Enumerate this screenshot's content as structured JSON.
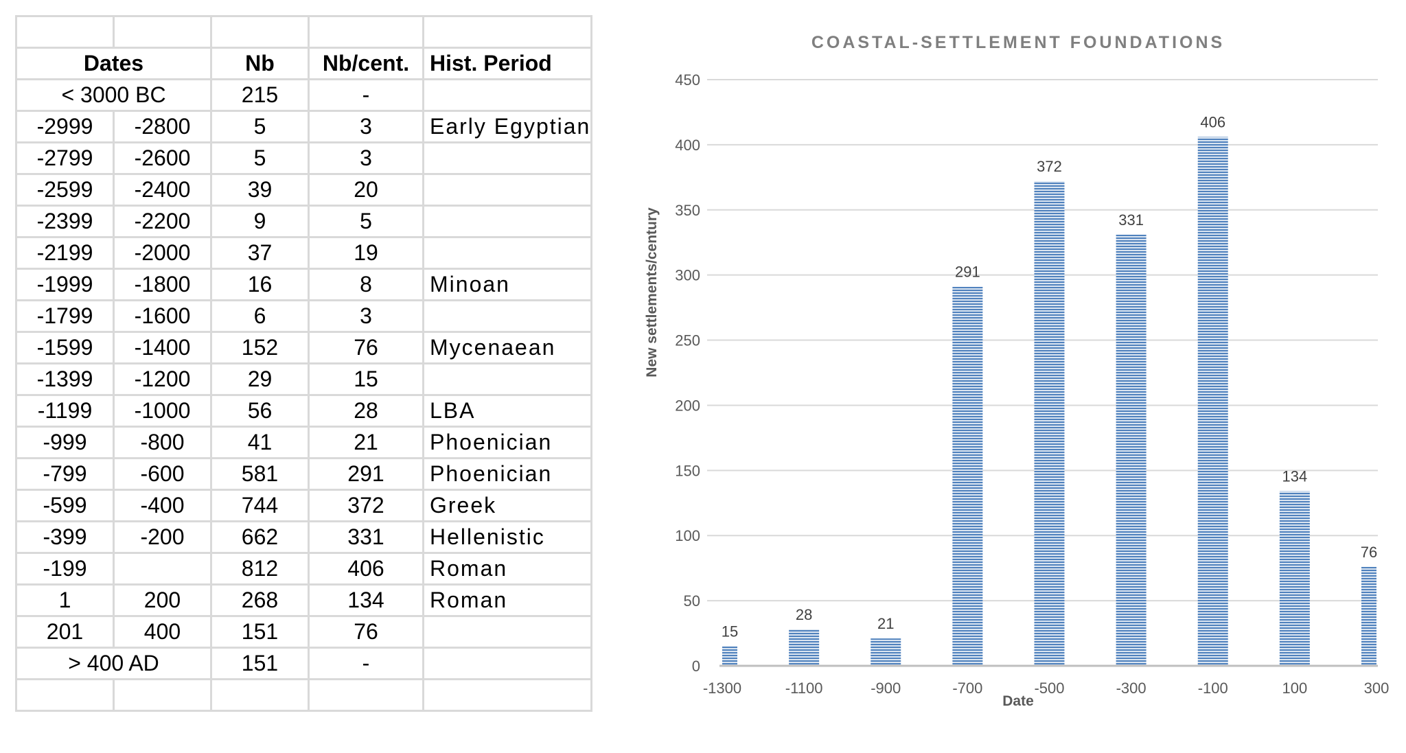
{
  "table": {
    "header": [
      "Dates",
      "Nb",
      "Nb/cent.",
      "Hist. Period"
    ],
    "rows": [
      {
        "start": "< 3000 BC",
        "end": "",
        "merged": true,
        "nb": "215",
        "nb_cent": "-",
        "period": ""
      },
      {
        "start": "-2999",
        "end": "-2800",
        "nb": "5",
        "nb_cent": "3",
        "period": "Early Egyptian"
      },
      {
        "start": "-2799",
        "end": "-2600",
        "nb": "5",
        "nb_cent": "3",
        "period": ""
      },
      {
        "start": "-2599",
        "end": "-2400",
        "nb": "39",
        "nb_cent": "20",
        "period": ""
      },
      {
        "start": "-2399",
        "end": "-2200",
        "nb": "9",
        "nb_cent": "5",
        "period": ""
      },
      {
        "start": "-2199",
        "end": "-2000",
        "nb": "37",
        "nb_cent": "19",
        "period": ""
      },
      {
        "start": "-1999",
        "end": "-1800",
        "nb": "16",
        "nb_cent": "8",
        "period": "Minoan"
      },
      {
        "start": "-1799",
        "end": "-1600",
        "nb": "6",
        "nb_cent": "3",
        "period": ""
      },
      {
        "start": "-1599",
        "end": "-1400",
        "nb": "152",
        "nb_cent": "76",
        "period": "Mycenaean"
      },
      {
        "start": "-1399",
        "end": "-1200",
        "nb": "29",
        "nb_cent": "15",
        "period": ""
      },
      {
        "start": "-1199",
        "end": "-1000",
        "nb": "56",
        "nb_cent": "28",
        "period": "LBA"
      },
      {
        "start": "-999",
        "end": "-800",
        "nb": "41",
        "nb_cent": "21",
        "period": "Phoenician"
      },
      {
        "start": "-799",
        "end": "-600",
        "nb": "581",
        "nb_cent": "291",
        "period": "Phoenician"
      },
      {
        "start": "-599",
        "end": "-400",
        "nb": "744",
        "nb_cent": "372",
        "period": "Greek"
      },
      {
        "start": "-399",
        "end": "-200",
        "nb": "662",
        "nb_cent": "331",
        "period": "Hellenistic"
      },
      {
        "start": "-199",
        "end": "",
        "nb": "812",
        "nb_cent": "406",
        "period": "Roman"
      },
      {
        "start": "1",
        "end": "200",
        "nb": "268",
        "nb_cent": "134",
        "period": "Roman"
      },
      {
        "start": "201",
        "end": "400",
        "nb": "151",
        "nb_cent": "76",
        "period": ""
      },
      {
        "start": "> 400 AD",
        "end": "",
        "merged": true,
        "nb": "151",
        "nb_cent": "-",
        "period": ""
      }
    ]
  },
  "chart_data": {
    "type": "bar",
    "title": "COASTAL-SETTLEMENT FOUNDATIONS",
    "xlabel": "Date",
    "ylabel": "New settlements/century",
    "categories": [
      "-1300",
      "-1100",
      "-900",
      "-700",
      "-500",
      "-300",
      "-100",
      "100",
      "300"
    ],
    "values": [
      15,
      28,
      21,
      291,
      372,
      331,
      406,
      134,
      76
    ],
    "ylim": [
      0,
      450
    ],
    "yticks": [
      0,
      50,
      100,
      150,
      200,
      250,
      300,
      350,
      400,
      450
    ],
    "grid": true,
    "legend": "none",
    "bar_color": "#4f81bd"
  }
}
